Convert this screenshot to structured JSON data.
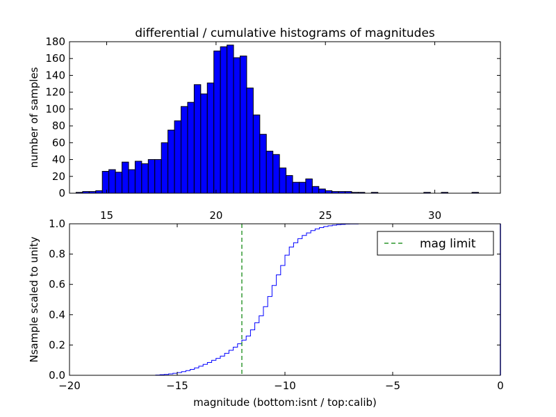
{
  "title": "differential / cumulative histograms of magnitudes",
  "chart_data": [
    {
      "type": "bar",
      "name": "differential-histogram",
      "ylabel": "number of samples",
      "xlim": [
        13.3,
        33.0
      ],
      "ylim": [
        0,
        180
      ],
      "xticks": [
        15,
        20,
        25,
        30
      ],
      "yticks": [
        0,
        20,
        40,
        60,
        80,
        100,
        120,
        140,
        160,
        180
      ],
      "xtick_labels": [
        "15",
        "20",
        "25",
        "30"
      ],
      "ytick_labels": [
        "0",
        "20",
        "40",
        "60",
        "80",
        "100",
        "120",
        "140",
        "160",
        "180"
      ],
      "bar_color": "#0000ff",
      "bin_width": 0.3,
      "bins": [
        {
          "x": 13.6,
          "v": 1
        },
        {
          "x": 13.9,
          "v": 2
        },
        {
          "x": 14.2,
          "v": 2
        },
        {
          "x": 14.5,
          "v": 3
        },
        {
          "x": 14.8,
          "v": 26
        },
        {
          "x": 15.1,
          "v": 28
        },
        {
          "x": 15.4,
          "v": 25
        },
        {
          "x": 15.7,
          "v": 37
        },
        {
          "x": 16.0,
          "v": 28
        },
        {
          "x": 16.3,
          "v": 38
        },
        {
          "x": 16.6,
          "v": 35
        },
        {
          "x": 16.9,
          "v": 40
        },
        {
          "x": 17.2,
          "v": 40
        },
        {
          "x": 17.5,
          "v": 60
        },
        {
          "x": 17.8,
          "v": 75
        },
        {
          "x": 18.1,
          "v": 86
        },
        {
          "x": 18.4,
          "v": 103
        },
        {
          "x": 18.7,
          "v": 108
        },
        {
          "x": 19.0,
          "v": 129
        },
        {
          "x": 19.3,
          "v": 118
        },
        {
          "x": 19.6,
          "v": 131
        },
        {
          "x": 19.9,
          "v": 169
        },
        {
          "x": 20.2,
          "v": 174
        },
        {
          "x": 20.5,
          "v": 176
        },
        {
          "x": 20.8,
          "v": 161
        },
        {
          "x": 21.1,
          "v": 163
        },
        {
          "x": 21.4,
          "v": 125
        },
        {
          "x": 21.7,
          "v": 93
        },
        {
          "x": 22.0,
          "v": 70
        },
        {
          "x": 22.3,
          "v": 50
        },
        {
          "x": 22.6,
          "v": 46
        },
        {
          "x": 22.9,
          "v": 30
        },
        {
          "x": 23.2,
          "v": 21
        },
        {
          "x": 23.5,
          "v": 13
        },
        {
          "x": 23.8,
          "v": 13
        },
        {
          "x": 24.1,
          "v": 17
        },
        {
          "x": 24.4,
          "v": 8
        },
        {
          "x": 24.7,
          "v": 5
        },
        {
          "x": 25.0,
          "v": 3
        },
        {
          "x": 25.3,
          "v": 2
        },
        {
          "x": 25.6,
          "v": 2
        },
        {
          "x": 25.9,
          "v": 2
        },
        {
          "x": 26.2,
          "v": 1
        },
        {
          "x": 26.5,
          "v": 1
        },
        {
          "x": 27.1,
          "v": 1
        },
        {
          "x": 29.5,
          "v": 1
        },
        {
          "x": 30.3,
          "v": 1
        },
        {
          "x": 31.7,
          "v": 1
        }
      ]
    },
    {
      "type": "line",
      "name": "cumulative-histogram",
      "xlabel": "magnitude (bottom:isnt / top:calib)",
      "ylabel": "Nsample scaled to unity",
      "xlim": [
        -20,
        0
      ],
      "ylim": [
        0,
        1.0
      ],
      "xticks": [
        -20,
        -15,
        -10,
        -5,
        0
      ],
      "yticks": [
        0,
        0.2,
        0.4,
        0.6,
        0.8,
        1.0
      ],
      "xtick_labels": [
        "−20",
        "−15",
        "−10",
        "−5",
        "0"
      ],
      "ytick_labels": [
        "0.0",
        "0.2",
        "0.4",
        "0.6",
        "0.8",
        "1.0"
      ],
      "series": [
        {
          "name": "cumulative",
          "color": "#0000ff",
          "style": "step",
          "x": [
            -20.0,
            -16.0,
            -15.8,
            -15.6,
            -15.4,
            -15.2,
            -15.0,
            -14.8,
            -14.6,
            -14.4,
            -14.2,
            -14.0,
            -13.8,
            -13.6,
            -13.4,
            -13.2,
            -13.0,
            -12.8,
            -12.6,
            -12.4,
            -12.2,
            -12.0,
            -11.8,
            -11.6,
            -11.4,
            -11.2,
            -11.0,
            -10.8,
            -10.6,
            -10.4,
            -10.2,
            -10.0,
            -9.8,
            -9.6,
            -9.4,
            -9.2,
            -9.0,
            -8.8,
            -8.6,
            -8.4,
            -8.2,
            -8.0,
            -7.8,
            -7.6,
            -7.4,
            -7.2,
            -7.0,
            -6.6,
            -6.0,
            -5.5,
            0
          ],
          "y": [
            0.0,
            0.002,
            0.004,
            0.006,
            0.009,
            0.013,
            0.018,
            0.024,
            0.031,
            0.039,
            0.049,
            0.06,
            0.072,
            0.085,
            0.099,
            0.112,
            0.127,
            0.145,
            0.165,
            0.186,
            0.208,
            0.232,
            0.259,
            0.3,
            0.347,
            0.393,
            0.453,
            0.52,
            0.593,
            0.663,
            0.725,
            0.793,
            0.847,
            0.875,
            0.902,
            0.923,
            0.94,
            0.955,
            0.966,
            0.975,
            0.982,
            0.987,
            0.991,
            0.994,
            0.996,
            0.998,
            0.999,
            1.0,
            1.0,
            1.0,
            1.0
          ]
        }
      ],
      "annotations": [
        {
          "type": "vline",
          "x": -12.0,
          "style": "dashed",
          "color": "#008000",
          "label": "mag limit"
        }
      ],
      "legend": {
        "position": "top-right",
        "entries": [
          "mag limit"
        ]
      }
    }
  ]
}
